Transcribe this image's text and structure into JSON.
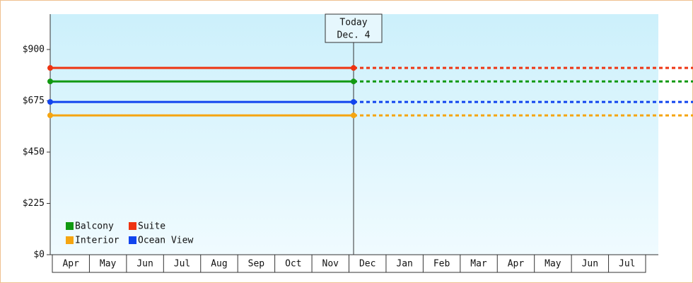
{
  "chart_data": {
    "type": "line",
    "months": [
      "Apr",
      "May",
      "Jun",
      "Jul",
      "Aug",
      "Sep",
      "Oct",
      "Nov",
      "Dec",
      "Jan",
      "Feb",
      "Mar",
      "Apr",
      "May",
      "Jun",
      "Jul"
    ],
    "today_label": "Today",
    "today_date": "Dec. 4",
    "series": [
      {
        "name": "Balcony",
        "color": "#119911",
        "values": [
          760,
          760
        ]
      },
      {
        "name": "Suite",
        "color": "#ee3311",
        "values": [
          819,
          819
        ]
      },
      {
        "name": "Interior",
        "color": "#f5a511",
        "values": [
          611,
          611
        ]
      },
      {
        "name": "Ocean View",
        "color": "#1144ee",
        "values": [
          670,
          670
        ]
      }
    ],
    "ylim": [
      0,
      1055
    ],
    "yticks": [
      {
        "value": 0,
        "label": "$0"
      },
      {
        "value": 225,
        "label": "$225"
      },
      {
        "value": 450,
        "label": "$450"
      },
      {
        "value": 675,
        "label": "$675"
      },
      {
        "value": 900,
        "label": "$900"
      }
    ],
    "legend": "lower left"
  }
}
